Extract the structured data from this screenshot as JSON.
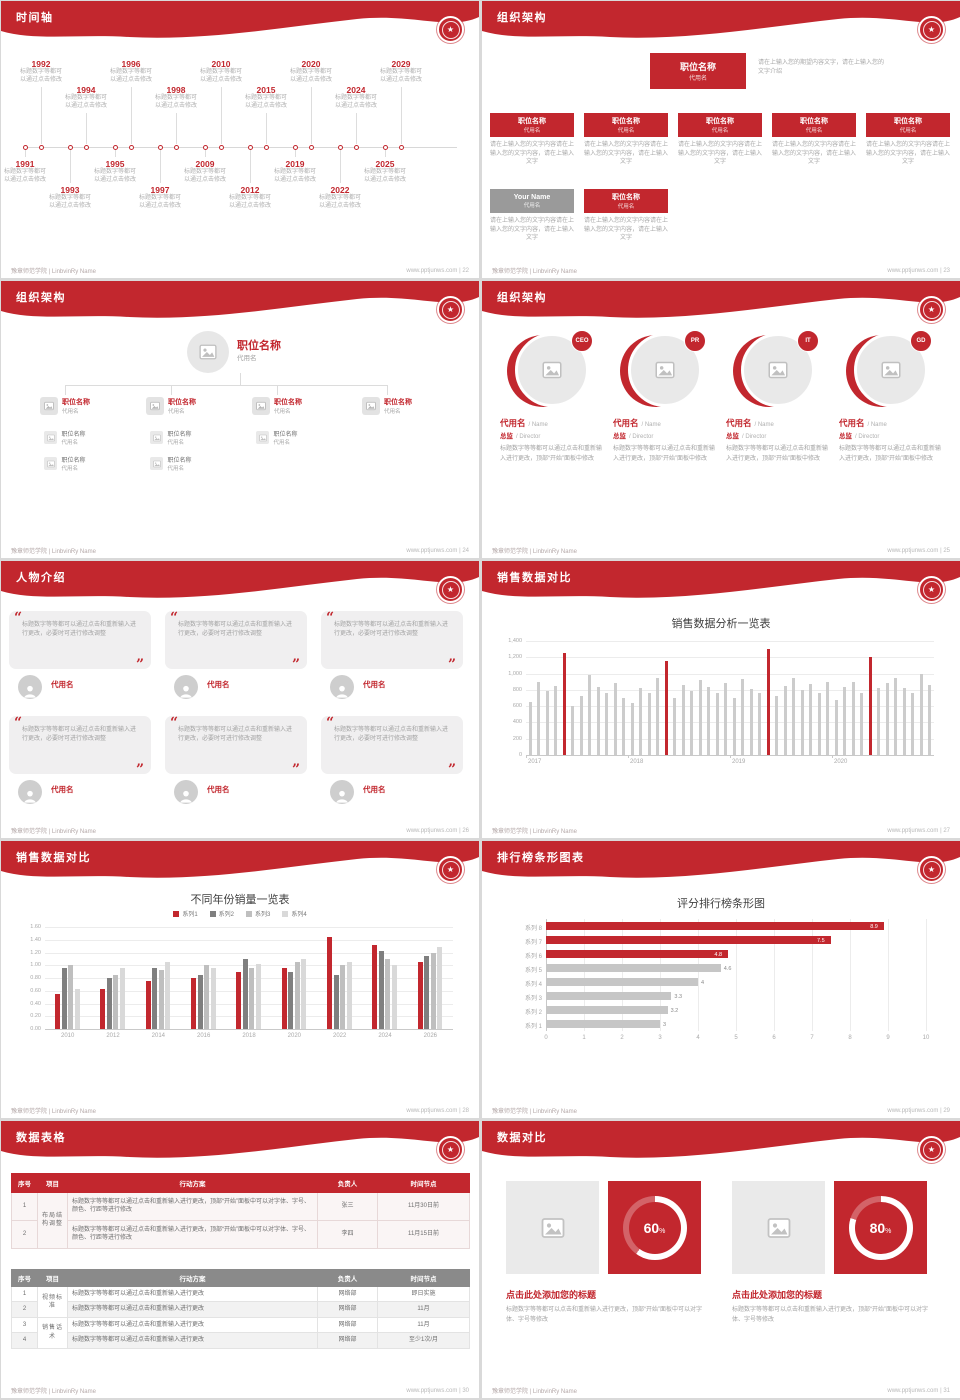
{
  "theme": {
    "red": "#c2272e",
    "emblem_glyph": "★",
    "series_colors": [
      "#c2272e",
      "#7f7f7f",
      "#bfbfbf",
      "#d9d9d9"
    ]
  },
  "footer": {
    "left": "豫章师范学院 | LinbvinRy Name",
    "site": "www.pptjunws.com",
    "sep": " | "
  },
  "slides": {
    "timeline": {
      "title": "时间轴",
      "page": "22",
      "note": "标题数字等都可以通过点击修改",
      "top_years": [
        "1992",
        "1994",
        "1996",
        "1998",
        "2010",
        "2015",
        "2020",
        "2024",
        "2029"
      ],
      "bottom_years": [
        "1991",
        "1993",
        "1995",
        "1997",
        "2009",
        "2012",
        "2019",
        "2022",
        "2025"
      ]
    },
    "org_a": {
      "title": "组织架构",
      "page": "23",
      "root": {
        "name": "职位名称",
        "sub": "代用名"
      },
      "root_note": "请在上输入您的期望内容文字，请在上输入您的文字介绍",
      "box_note": "请在上输入您的文字内容请在上输入您的文字内容，请在上输入文字",
      "row1": [
        {
          "name": "职位名称",
          "sub": "代用名"
        },
        {
          "name": "职位名称",
          "sub": "代用名"
        },
        {
          "name": "职位名称",
          "sub": "代用名"
        },
        {
          "name": "职位名称",
          "sub": "代用名"
        },
        {
          "name": "职位名称",
          "sub": "代用名"
        }
      ],
      "row2": [
        {
          "name": "Your Name",
          "sub": "代用名",
          "gray": true
        },
        {
          "name": "职位名称",
          "sub": "代用名",
          "gray": false
        }
      ]
    },
    "org_b": {
      "title": "组织架构",
      "page": "24",
      "root": {
        "name": "职位名称",
        "sub": "代用名"
      },
      "columns": [
        {
          "name": "职位名称",
          "sub": "代用名",
          "children": [
            {
              "name": "职位名称",
              "sub": "代用名"
            },
            {
              "name": "职位名称",
              "sub": "代用名"
            }
          ]
        },
        {
          "name": "职位名称",
          "sub": "代用名",
          "children": [
            {
              "name": "职位名称",
              "sub": "代用名"
            },
            {
              "name": "职位名称",
              "sub": "代用名"
            }
          ]
        },
        {
          "name": "职位名称",
          "sub": "代用名",
          "children": [
            {
              "name": "职位名称",
              "sub": "代用名"
            }
          ]
        },
        {
          "name": "职位名称",
          "sub": "代用名",
          "children": []
        }
      ]
    },
    "org_c": {
      "title": "组织架构",
      "page": "25",
      "desc": "标题数字等等都可以通过点击和重新输入进行更改，顶部“开始”面板中修改",
      "members": [
        {
          "badge": "CEO",
          "name": "代用名",
          "name_en": "/ Name",
          "role": "总监",
          "role_en": "/ Director"
        },
        {
          "badge": "PR",
          "name": "代用名",
          "name_en": "/ Name",
          "role": "总监",
          "role_en": "/ Director"
        },
        {
          "badge": "IT",
          "name": "代用名",
          "name_en": "/ Name",
          "role": "总监",
          "role_en": "/ Director"
        },
        {
          "badge": "GD",
          "name": "代用名",
          "name_en": "/ Name",
          "role": "总监",
          "role_en": "/ Director"
        }
      ]
    },
    "people": {
      "title": "人物介绍",
      "page": "26",
      "quote": "标题数字等等都可以通过点击和重新输入进行更改，必要时可进行修改调整",
      "cards": [
        {
          "name": "代用名"
        },
        {
          "name": "代用名"
        },
        {
          "name": "代用名"
        },
        {
          "name": "代用名"
        },
        {
          "name": "代用名"
        },
        {
          "name": "代用名"
        }
      ]
    },
    "chart_thin": {
      "title": "销售数据对比",
      "page": "27"
    },
    "chart_group": {
      "title": "销售数据对比",
      "page": "28"
    },
    "chart_rank": {
      "title": "排行榜条形图表",
      "page": "29"
    },
    "tables": {
      "title": "数据表格",
      "page": "30",
      "table1": {
        "headers": [
          "序号",
          "项目",
          "行动方案",
          "负责人",
          "时间节点"
        ],
        "groups": [
          {
            "project": "布局结构调整",
            "rows": [
              {
                "no": "1",
                "plan": "标题数字等等都可以通过点击和重新输入进行更改，顶部“开始”面板中可以对字体、字号、颜色、行距等进行修改",
                "owner": "张三",
                "time": "11月30日前"
              },
              {
                "no": "2",
                "plan": "标题数字等等都可以通过点击和重新输入进行更改，顶部“开始”面板中可以对字体、字号、颜色、行距等进行修改",
                "owner": "李四",
                "time": "11月15日前"
              }
            ]
          }
        ]
      },
      "table2": {
        "headers": [
          "序号",
          "项目",
          "行动方案",
          "负责人",
          "时间节点"
        ],
        "groups": [
          {
            "project": "视频标准",
            "rows": [
              {
                "no": "1",
                "plan": "标题数字等等都可以通过点击和重新输入进行更改",
                "owner": "网络部",
                "time": "即日实施"
              },
              {
                "no": "2",
                "plan": "标题数字等等都可以通过点击和重新输入进行更改",
                "owner": "网络部",
                "time": "11月"
              }
            ]
          },
          {
            "project": "销售话术",
            "rows": [
              {
                "no": "3",
                "plan": "标题数字等等都可以通过点击和重新输入进行更改",
                "owner": "网络部",
                "time": "11月"
              },
              {
                "no": "4",
                "plan": "标题数字等等都可以通过点击和重新输入进行更改",
                "owner": "网络部",
                "time": "至少1次/月"
              }
            ]
          }
        ]
      }
    },
    "compare": {
      "title": "数据对比",
      "page": "31",
      "panels": [
        {
          "percent": 60,
          "label": "60",
          "heading": "点击此处添加您的标题",
          "desc": "标题数字等等都可以点击和重新输入进行更改，顶部“开始”面板中可以对字体、字号等修改"
        },
        {
          "percent": 80,
          "label": "80",
          "heading": "点击此处添加您的标题",
          "desc": "标题数字等等都可以点击和重新输入进行更改，顶部“开始”面板中可以对字体、字号等修改"
        }
      ]
    }
  },
  "chart_data": [
    {
      "type": "bar",
      "title": "销售数据分析一览表",
      "x_groups": [
        "2017",
        "2018",
        "2019",
        "2020"
      ],
      "values": [
        650,
        900,
        780,
        850,
        1250,
        600,
        720,
        980,
        830,
        760,
        890,
        700,
        640,
        820,
        760,
        950,
        1150,
        700,
        860,
        790,
        920,
        840,
        760,
        880,
        700,
        930,
        810,
        760,
        1300,
        720,
        850,
        940,
        800,
        870,
        760,
        900,
        680,
        840,
        900,
        760,
        1200,
        820,
        880,
        940,
        820,
        760,
        1000,
        860
      ],
      "highlight_indices": [
        4,
        16,
        28,
        40
      ],
      "ylim": [
        0,
        1400
      ],
      "yticks": [
        "1,400",
        "1,200",
        "1,000",
        "800",
        "600",
        "400",
        "200",
        "0"
      ],
      "bar_color": "#cccccc",
      "highlight_color": "#c2272e"
    },
    {
      "type": "bar",
      "title": "不同年份销量一览表",
      "categories": [
        "2010",
        "2012",
        "2014",
        "2016",
        "2018",
        "2020",
        "2022",
        "2024",
        "2026"
      ],
      "series": [
        {
          "name": "系列1",
          "color": "#c2272e",
          "values": [
            0.55,
            0.62,
            0.75,
            0.8,
            0.9,
            0.95,
            1.45,
            1.32,
            1.05
          ]
        },
        {
          "name": "系列2",
          "color": "#7f7f7f",
          "values": [
            0.95,
            0.8,
            0.95,
            0.85,
            1.1,
            0.9,
            0.85,
            1.22,
            1.15
          ]
        },
        {
          "name": "系列3",
          "color": "#bfbfbf",
          "values": [
            1.0,
            0.85,
            0.92,
            1.0,
            0.95,
            1.05,
            1.0,
            1.1,
            1.2
          ]
        },
        {
          "name": "系列4",
          "color": "#d9d9d9",
          "values": [
            0.62,
            0.95,
            1.05,
            0.95,
            1.02,
            1.1,
            1.05,
            1.0,
            1.28
          ]
        }
      ],
      "ylim": [
        0,
        1.6
      ],
      "yticks": [
        "1.60",
        "1.40",
        "1.20",
        "1.00",
        "0.80",
        "0.60",
        "0.40",
        "0.20",
        "0.00"
      ]
    },
    {
      "type": "bar",
      "orientation": "horizontal",
      "title": "评分排行榜条形图",
      "categories": [
        "系列 8",
        "系列 7",
        "系列 6",
        "系列 5",
        "系列 4",
        "系列 3",
        "系列 2",
        "系列 1"
      ],
      "values": [
        8.9,
        7.5,
        4.8,
        4.6,
        4,
        3.3,
        3.2,
        3
      ],
      "value_labels": [
        "8.9",
        "7.5",
        "4.8",
        "4.6",
        "4",
        "3.3",
        "3.2",
        "3"
      ],
      "red_count": 3,
      "xlim": [
        0,
        10
      ],
      "xticks": [
        "0",
        "1",
        "2",
        "3",
        "4",
        "5",
        "6",
        "7",
        "8",
        "9",
        "10"
      ]
    }
  ]
}
